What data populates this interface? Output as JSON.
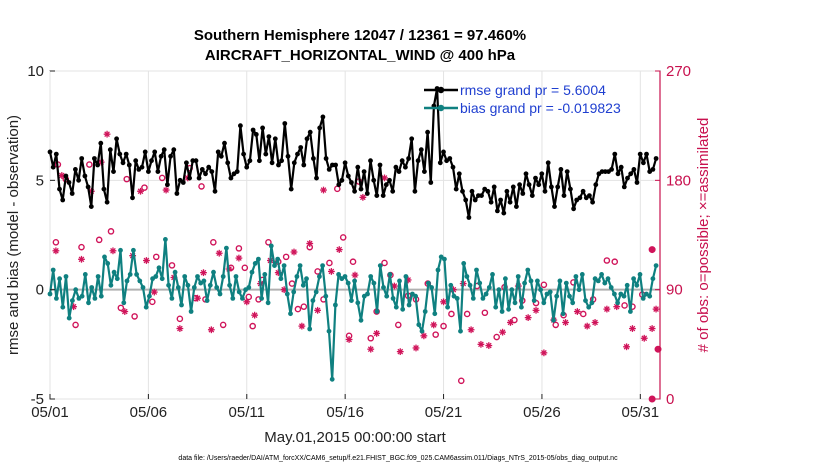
{
  "chart_data": {
    "type": "line",
    "title_line1": "Southern Hemisphere 12047 / 12361 = 97.460%",
    "title_line2": "AIRCRAFT_HORIZONTAL_WIND @ 400 hPa",
    "xlabel": "May.01,2015 00:00:00 start",
    "ylabel_left": "rmse and bias (model - observation)",
    "ylabel_right": "# of obs: o=possible; ×=assimilated",
    "footer": "data file: /Users/raeder/DAI/ATM_forcXX/CAM6_setup/f.e21.FHIST_BGC.f09_025.CAM6assim.011/Diags_NTrS_2015-05/obs_diag_output.nc",
    "x_tick_labels": [
      "05/01",
      "05/06",
      "05/11",
      "05/16",
      "05/21",
      "05/26",
      "05/31"
    ],
    "x_tick_days": [
      1,
      6,
      11,
      16,
      21,
      26,
      31
    ],
    "xlim": [
      1,
      32
    ],
    "ylim_left": [
      -5,
      10
    ],
    "yticks_left": [
      "-5",
      "0",
      "5",
      "10"
    ],
    "ylim_right": [
      0,
      270
    ],
    "yticks_right": [
      "0",
      "90",
      "180",
      "270"
    ],
    "colors": {
      "rmse": "#000000",
      "bias": "#0f8080",
      "obs": "#d0145a",
      "zero_line": "#b0b0b0",
      "legend_text": "#1f3fd0",
      "axis_right": "#c8104e"
    },
    "series": [
      {
        "name": "rmse grand pr = 5.6004",
        "axis": "left",
        "values": [
          6.3,
          5.6,
          6.2,
          4.6,
          4.1,
          5.2,
          4.9,
          4.4,
          5.5,
          5.0,
          6.0,
          5.2,
          4.7,
          3.8,
          6.0,
          5.7,
          6.7,
          4.6,
          4.0,
          6.4,
          5.4,
          6.9,
          6.2,
          5.8,
          6.2,
          5.7,
          4.2,
          5.9,
          5.5,
          5.6,
          6.3,
          5.4,
          5.9,
          6.3,
          5.4,
          6.1,
          6.4,
          4.8,
          6.1,
          6.4,
          4.4,
          5.0,
          4.9,
          5.8,
          5.1,
          5.9,
          5.9,
          5.1,
          5.5,
          5.3,
          5.6,
          5.4,
          4.5,
          6.3,
          6.1,
          6.7,
          5.8,
          5.1,
          5.3,
          5.4,
          7.5,
          6.2,
          5.6,
          5.9,
          7.3,
          7.1,
          5.9,
          7.4,
          6.2,
          7.0,
          5.8,
          6.9,
          5.7,
          5.9,
          7.6,
          6.1,
          4.6,
          5.8,
          6.2,
          6.5,
          5.7,
          6.9,
          7.2,
          6.0,
          5.1,
          7.4,
          7.9,
          6.0,
          5.5,
          5.7,
          5.7,
          4.8,
          5.0,
          5.8,
          5.2,
          4.9,
          4.5,
          5.6,
          4.6,
          5.4,
          4.4,
          5.9,
          5.0,
          4.3,
          5.7,
          4.3,
          4.8,
          5.0,
          4.5,
          5.6,
          5.4,
          5.9,
          5.6,
          6.0,
          6.9,
          4.5,
          5.9,
          6.4,
          5.4,
          7.2,
          4.9,
          8.4,
          9.2,
          5.8,
          6.3,
          5.9,
          6.0,
          5.6,
          4.6,
          5.3,
          4.5,
          4.1,
          3.3,
          4.5,
          4.1,
          4.3,
          4.3,
          4.6,
          4.5,
          4.0,
          4.7,
          3.6,
          4.1,
          3.5,
          4.5,
          4.0,
          4.7,
          3.8,
          4.8,
          4.4,
          5.3,
          4.8,
          4.3,
          5.1,
          4.8,
          5.3,
          4.5,
          5.8,
          4.7,
          3.8,
          4.7,
          5.5,
          4.3,
          5.4,
          4.6,
          3.7,
          4.1,
          4.2,
          4.5,
          4.2,
          4.3,
          4.0,
          4.8,
          5.3,
          5.4,
          5.4,
          5.4,
          5.5,
          6.2,
          5.3,
          5.6,
          4.7,
          5.1,
          5.3,
          5.5,
          4.9,
          6.2,
          5.8,
          6.2,
          5.4,
          5.5,
          6.0
        ]
      },
      {
        "name": "bias grand pr = -0.019823",
        "axis": "left",
        "values": [
          -0.2,
          0.9,
          -0.4,
          0.5,
          -0.8,
          0.6,
          -1.3,
          -0.5,
          0.0,
          -0.4,
          -0.3,
          0.7,
          -0.6,
          0.1,
          -0.4,
          0.6,
          -0.3,
          1.5,
          1.2,
          0.2,
          0.8,
          0.5,
          1.8,
          -0.6,
          0.4,
          0.7,
          1.8,
          0.7,
          0.4,
          0.1,
          -0.8,
          -0.3,
          0.5,
          0.6,
          1.0,
          0.5,
          2.3,
          0.2,
          -0.4,
          0.8,
          0.1,
          -0.7,
          0.6,
          0.2,
          -1.0,
          0.1,
          0.6,
          0.3,
          0.4,
          -0.5,
          0.2,
          0.8,
          0.1,
          -0.2,
          0.6,
          1.9,
          0.2,
          -0.4,
          0.6,
          -0.1,
          -0.4,
          0.0,
          0.1,
          0.8,
          1.2,
          1.4,
          -0.4,
          0.7,
          -0.6,
          2.0,
          1.1,
          1.4,
          0.5,
          1.1,
          -0.2,
          -1.1,
          -0.1,
          0.6,
          1.1,
          0.2,
          0.5,
          -1.8,
          -0.5,
          -0.1,
          0.6,
          1.1,
          -0.3,
          -1.9,
          -4.1,
          -0.7,
          0.7,
          0.5,
          0.6,
          0.3,
          -0.5,
          0.4,
          -0.6,
          -1.4,
          -0.3,
          -0.2,
          0.6,
          0.3,
          -1.0,
          1.1,
          0.1,
          -0.3,
          0.7,
          -0.4,
          -0.8,
          0.4,
          -0.9,
          0.6,
          -0.7,
          -0.2,
          -0.3,
          -1.6,
          -1.9,
          -1.0,
          0.3,
          0.1,
          -1.1,
          0.9,
          1.5,
          1.4,
          -0.8,
          0.2,
          -0.3,
          -0.4,
          -1.9,
          1.2,
          0.6,
          0.2,
          -0.4,
          0.9,
          0.3,
          -0.4,
          -0.2,
          0.1,
          0.7,
          -0.8,
          0.0,
          -1.0,
          0.5,
          -0.9,
          0.0,
          -0.6,
          0.6,
          -0.8,
          0.3,
          0.9,
          0.4,
          -0.5,
          0.4,
          0.0,
          -0.6,
          -0.2,
          -0.1,
          -1.4,
          -0.3,
          0.4,
          -1.1,
          0.3,
          -0.3,
          -0.6,
          0.6,
          0.0,
          0.7,
          -0.5,
          -0.8,
          -0.6,
          0.5,
          0.4,
          0.7,
          0.3,
          0.5,
          0.1,
          -0.2,
          -0.6,
          -0.2,
          -0.3,
          0.2,
          -1.0,
          0.5,
          0.2,
          0.7,
          -0.4,
          -0.2,
          -0.3,
          0.5,
          1.1
        ]
      }
    ],
    "obs_possible": {
      "axis": "right",
      "marker": "o",
      "points": [
        [
          1.3,
          129
        ],
        [
          1.4,
          193
        ],
        [
          1.8,
          181
        ],
        [
          2.3,
          61
        ],
        [
          2.6,
          125
        ],
        [
          3.0,
          193
        ],
        [
          3.5,
          131
        ],
        [
          4.1,
          138
        ],
        [
          4.6,
          75
        ],
        [
          4.9,
          181
        ],
        [
          5.3,
          68
        ],
        [
          5.8,
          174
        ],
        [
          6.2,
          80
        ],
        [
          6.4,
          117
        ],
        [
          6.7,
          182
        ],
        [
          7.2,
          110
        ],
        [
          7.6,
          66
        ],
        [
          8.1,
          190
        ],
        [
          8.4,
          83
        ],
        [
          8.7,
          175
        ],
        [
          8.9,
          82
        ],
        [
          9.3,
          129
        ],
        [
          9.8,
          61
        ],
        [
          10.2,
          108
        ],
        [
          10.6,
          124
        ],
        [
          10.9,
          108
        ],
        [
          11.1,
          84
        ],
        [
          11.3,
          60
        ],
        [
          11.6,
          82
        ],
        [
          11.8,
          98
        ],
        [
          12.1,
          129
        ],
        [
          12.6,
          113
        ],
        [
          13.0,
          117
        ],
        [
          13.3,
          95
        ],
        [
          13.6,
          74
        ],
        [
          13.9,
          76
        ],
        [
          14.2,
          125
        ],
        [
          14.6,
          105
        ],
        [
          14.9,
          82
        ],
        [
          15.2,
          112
        ],
        [
          15.6,
          173
        ],
        [
          15.9,
          133
        ],
        [
          16.2,
          52
        ],
        [
          16.4,
          113
        ],
        [
          16.7,
          179
        ],
        [
          17.3,
          50
        ],
        [
          17.6,
          72
        ],
        [
          18.0,
          112
        ],
        [
          18.3,
          102
        ],
        [
          18.7,
          61
        ],
        [
          19.2,
          85
        ],
        [
          19.6,
          82
        ],
        [
          20.2,
          95
        ],
        [
          20.6,
          53
        ],
        [
          21.0,
          60
        ],
        [
          21.4,
          70
        ],
        [
          21.9,
          15
        ],
        [
          22.2,
          70
        ],
        [
          22.7,
          93
        ],
        [
          23.1,
          71
        ],
        [
          23.7,
          51
        ],
        [
          24.1,
          92
        ],
        [
          24.6,
          65
        ],
        [
          25.0,
          81
        ],
        [
          25.7,
          79
        ],
        [
          26.1,
          94
        ],
        [
          26.7,
          61
        ],
        [
          27.1,
          69
        ],
        [
          27.6,
          96
        ],
        [
          28.1,
          70
        ],
        [
          28.6,
          82
        ],
        [
          29.3,
          114
        ],
        [
          29.7,
          113
        ],
        [
          30.2,
          77
        ],
        [
          30.6,
          76
        ],
        [
          31.1,
          86
        ]
      ]
    },
    "obs_assimilated": {
      "axis": "right",
      "marker": "*",
      "points": [
        [
          1.3,
          122
        ],
        [
          1.6,
          184
        ],
        [
          2.2,
          76
        ],
        [
          2.6,
          115
        ],
        [
          3.1,
          171
        ],
        [
          3.6,
          195
        ],
        [
          3.9,
          218
        ],
        [
          4.2,
          122
        ],
        [
          4.8,
          72
        ],
        [
          5.2,
          118
        ],
        [
          5.6,
          171
        ],
        [
          5.9,
          114
        ],
        [
          6.3,
          88
        ],
        [
          6.9,
          172
        ],
        [
          7.3,
          100
        ],
        [
          7.6,
          58
        ],
        [
          8.0,
          182
        ],
        [
          8.5,
          83
        ],
        [
          8.8,
          104
        ],
        [
          9.2,
          57
        ],
        [
          9.6,
          120
        ],
        [
          10.1,
          107
        ],
        [
          10.6,
          116
        ],
        [
          11.0,
          80
        ],
        [
          11.4,
          69
        ],
        [
          11.7,
          95
        ],
        [
          12.2,
          114
        ],
        [
          12.6,
          104
        ],
        [
          12.9,
          90
        ],
        [
          13.4,
          121
        ],
        [
          13.8,
          60
        ],
        [
          14.2,
          128
        ],
        [
          14.6,
          73
        ],
        [
          14.9,
          172
        ],
        [
          15.3,
          105
        ],
        [
          15.7,
          123
        ],
        [
          16.2,
          49
        ],
        [
          16.5,
          102
        ],
        [
          16.9,
          166
        ],
        [
          17.3,
          41
        ],
        [
          17.6,
          54
        ],
        [
          18.0,
          182
        ],
        [
          18.5,
          93
        ],
        [
          18.8,
          39
        ],
        [
          19.2,
          98
        ],
        [
          19.6,
          42
        ],
        [
          20.0,
          52
        ],
        [
          20.5,
          61
        ],
        [
          21.0,
          80
        ],
        [
          21.5,
          90
        ],
        [
          22.0,
          95
        ],
        [
          22.4,
          57
        ],
        [
          22.9,
          45
        ],
        [
          23.3,
          44
        ],
        [
          24.0,
          55
        ],
        [
          24.4,
          63
        ],
        [
          24.8,
          93
        ],
        [
          25.3,
          67
        ],
        [
          25.7,
          73
        ],
        [
          26.1,
          38
        ],
        [
          26.6,
          65
        ],
        [
          27.2,
          63
        ],
        [
          27.8,
          72
        ],
        [
          28.3,
          60
        ],
        [
          28.7,
          63
        ],
        [
          29.3,
          74
        ],
        [
          29.8,
          76
        ],
        [
          30.3,
          43
        ],
        [
          30.6,
          58
        ],
        [
          31.2,
          50
        ],
        [
          31.6,
          58
        ],
        [
          31.8,
          74
        ]
      ]
    },
    "obs_possible_right_edge": [
      [
        31.6,
        123
      ],
      [
        31.9,
        41
      ],
      [
        31.6,
        0
      ]
    ]
  }
}
